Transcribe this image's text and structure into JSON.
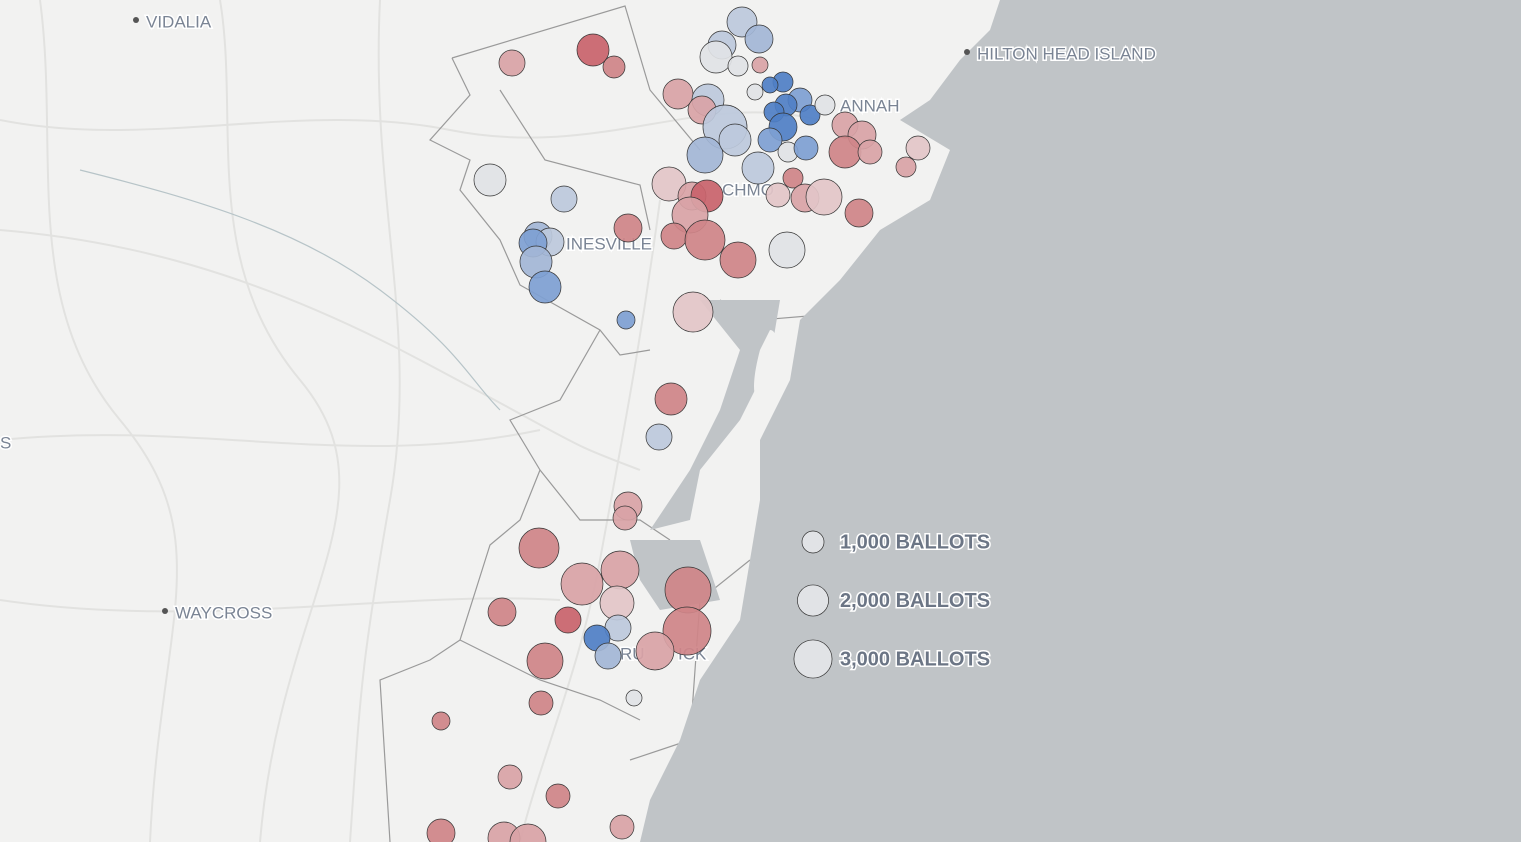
{
  "places": [
    {
      "label": "VIDALIA",
      "lon": -82.328,
      "lat": 32.26,
      "dot": true
    },
    {
      "label": "HILTON HEAD ISLAND",
      "lon": -80.666,
      "lat": 32.196,
      "dot": true
    },
    {
      "label": "WAYCROSS",
      "lon": -82.27,
      "lat": 31.078,
      "dot": true
    },
    {
      "label": "ANNAH",
      "lon": -80.92,
      "lat": 32.092,
      "dot": false
    },
    {
      "label": "CHMO",
      "lon": -81.156,
      "lat": 31.924,
      "dot": false
    },
    {
      "label": "INESVILLE",
      "lon": -81.468,
      "lat": 31.816,
      "dot": false
    },
    {
      "label": "RU",
      "lon": -81.36,
      "lat": 30.996,
      "dot": false
    },
    {
      "label": "ICK",
      "lon": -81.244,
      "lat": 30.996,
      "dot": false
    },
    {
      "label": "S",
      "lon": -82.6,
      "lat": 31.418,
      "dot": false
    }
  ],
  "precincts": {
    "lon": [
      -81.576,
      -81.414,
      -81.372,
      -81.116,
      -81.082,
      -81.156,
      -81.168,
      -81.124,
      -81.08,
      -81.244,
      -81.184,
      -81.034,
      -81.06,
      -81.09,
      -81.0,
      -81.028,
      -81.052,
      -80.98,
      -81.034,
      -80.95,
      -81.196,
      -81.15,
      -81.19,
      -81.13,
      -81.06,
      -81.084,
      -81.024,
      -80.988,
      -80.91,
      -80.876,
      -80.91,
      -80.86,
      -80.764,
      -80.788,
      -81.014,
      -81.044,
      -80.99,
      -80.952,
      -80.882,
      -81.262,
      -81.216,
      -81.186,
      -81.22,
      -81.252,
      -81.19,
      -81.124,
      -81.026,
      -81.62,
      -81.472,
      -81.344,
      -81.524,
      -81.5,
      -81.534,
      -81.528,
      -81.51,
      -81.348,
      -81.214,
      -81.258,
      -81.282,
      -81.344,
      -81.35,
      -81.522,
      -81.36,
      -81.436,
      -81.366,
      -81.224,
      -81.226,
      -81.596,
      -81.464,
      -81.364,
      -81.406,
      -81.384,
      -81.29,
      -81.51,
      -81.332,
      -81.518,
      -81.718,
      -81.58,
      -81.484,
      -81.356,
      -81.718,
      -81.592,
      -81.544
    ],
    "lat": [
      32.174,
      32.2,
      32.166,
      32.256,
      32.222,
      32.21,
      32.186,
      32.168,
      32.17,
      32.112,
      32.1,
      32.136,
      32.13,
      32.116,
      32.1,
      32.09,
      32.076,
      32.07,
      32.046,
      32.09,
      32.08,
      32.046,
      31.99,
      32.02,
      32.02,
      31.964,
      31.996,
      32.004,
      32.05,
      32.03,
      31.996,
      31.996,
      32.004,
      31.966,
      31.944,
      31.91,
      31.904,
      31.906,
      31.874,
      31.932,
      31.908,
      31.908,
      31.87,
      31.828,
      31.82,
      31.78,
      31.8,
      31.94,
      31.902,
      31.844,
      31.828,
      31.816,
      31.814,
      31.776,
      31.726,
      31.66,
      31.676,
      31.502,
      31.426,
      31.288,
      31.264,
      31.204,
      31.16,
      31.132,
      31.094,
      31.12,
      31.038,
      31.076,
      31.06,
      31.044,
      31.024,
      30.988,
      30.998,
      30.978,
      30.904,
      30.894,
      30.858,
      30.746,
      30.708,
      30.646,
      30.634,
      30.624,
      30.616
    ],
    "ballots": [
      1400,
      2120,
      1000,
      1860,
      1620,
      1620,
      2120,
      830,
      530,
      1860,
      2120,
      830,
      530,
      530,
      1190,
      1000,
      830,
      830,
      1620,
      830,
      1620,
      4000,
      2680,
      2120,
      1190,
      2120,
      830,
      1190,
      1400,
      1620,
      2120,
      1190,
      1190,
      830,
      830,
      1190,
      1620,
      2680,
      1620,
      2390,
      1620,
      2120,
      2680,
      1400,
      3310,
      2680,
      2680,
      2120,
      1400,
      1620,
      1620,
      1620,
      1620,
      2120,
      2120,
      670,
      3310,
      2120,
      1400,
      1620,
      1190,
      3310,
      2980,
      3640,
      2390,
      4370,
      4760,
      1620,
      1400,
      1400,
      1400,
      1400,
      2980,
      2680,
      530,
      1190,
      670,
      1190,
      1190,
      1190,
      1620,
      2120,
      2680
    ],
    "colors": [
      "#d9a3a6",
      "#c9636b",
      "#cf8488",
      "#bdc9dc",
      "#a3b6d6",
      "#bdc9dc",
      "#e1e3e6",
      "#e1e3e6",
      "#d9a3a6",
      "#d9a3a6",
      "#bdc9dc",
      "#4f7fc6",
      "#4f7fc6",
      "#e1e3e6",
      "#7ea0d3",
      "#4f7fc6",
      "#4f7fc6",
      "#4f7fc6",
      "#4f7fc6",
      "#e1e3e6",
      "#d9a3a6",
      "#bdc9dc",
      "#a3b6d6",
      "#bdc9dc",
      "#7ea0d3",
      "#bdc9dc",
      "#e1e3e6",
      "#7ea0d3",
      "#d9a3a6",
      "#d9a3a6",
      "#cf8488",
      "#d9a3a6",
      "#e3c6c8",
      "#d9a3a6",
      "#cf8488",
      "#e3c6c8",
      "#d9a3a6",
      "#e3c6c8",
      "#cf8488",
      "#e3c6c8",
      "#d9a3a6",
      "#c9636b",
      "#d9a3a6",
      "#cf8488",
      "#cf8488",
      "#cf8488",
      "#e1e3e6",
      "#e1e3e6",
      "#bdc9dc",
      "#cf8488",
      "#a3b6d6",
      "#bdc9dc",
      "#7ea0d3",
      "#a3b6d6",
      "#7ea0d3",
      "#7ea0d3",
      "#e3c6c8",
      "#cf8488",
      "#bdc9dc",
      "#d9a3a6",
      "#d9a3a6",
      "#cf8488",
      "#d9a3a6",
      "#d9a3a6",
      "#e3c6c8",
      "#cf8488",
      "#cf8488",
      "#cf8488",
      "#c9636b",
      "#bdc9dc",
      "#4f7fc6",
      "#a3b6d6",
      "#d9a3a6",
      "#cf8488",
      "#e1e3e6",
      "#cf8488",
      "#cf8488",
      "#d9a3a6",
      "#cf8488",
      "#d9a3a6",
      "#cf8488",
      "#d9a3a6",
      "#d9a3a6"
    ]
  },
  "legend": [
    {
      "value": 1000,
      "label": "1,000 BALLOTS"
    },
    {
      "value": 2000,
      "label": "2,000 BALLOTS"
    },
    {
      "value": 3000,
      "label": "3,000 BALLOTS"
    }
  ],
  "legend_color": "#e1e3e6"
}
